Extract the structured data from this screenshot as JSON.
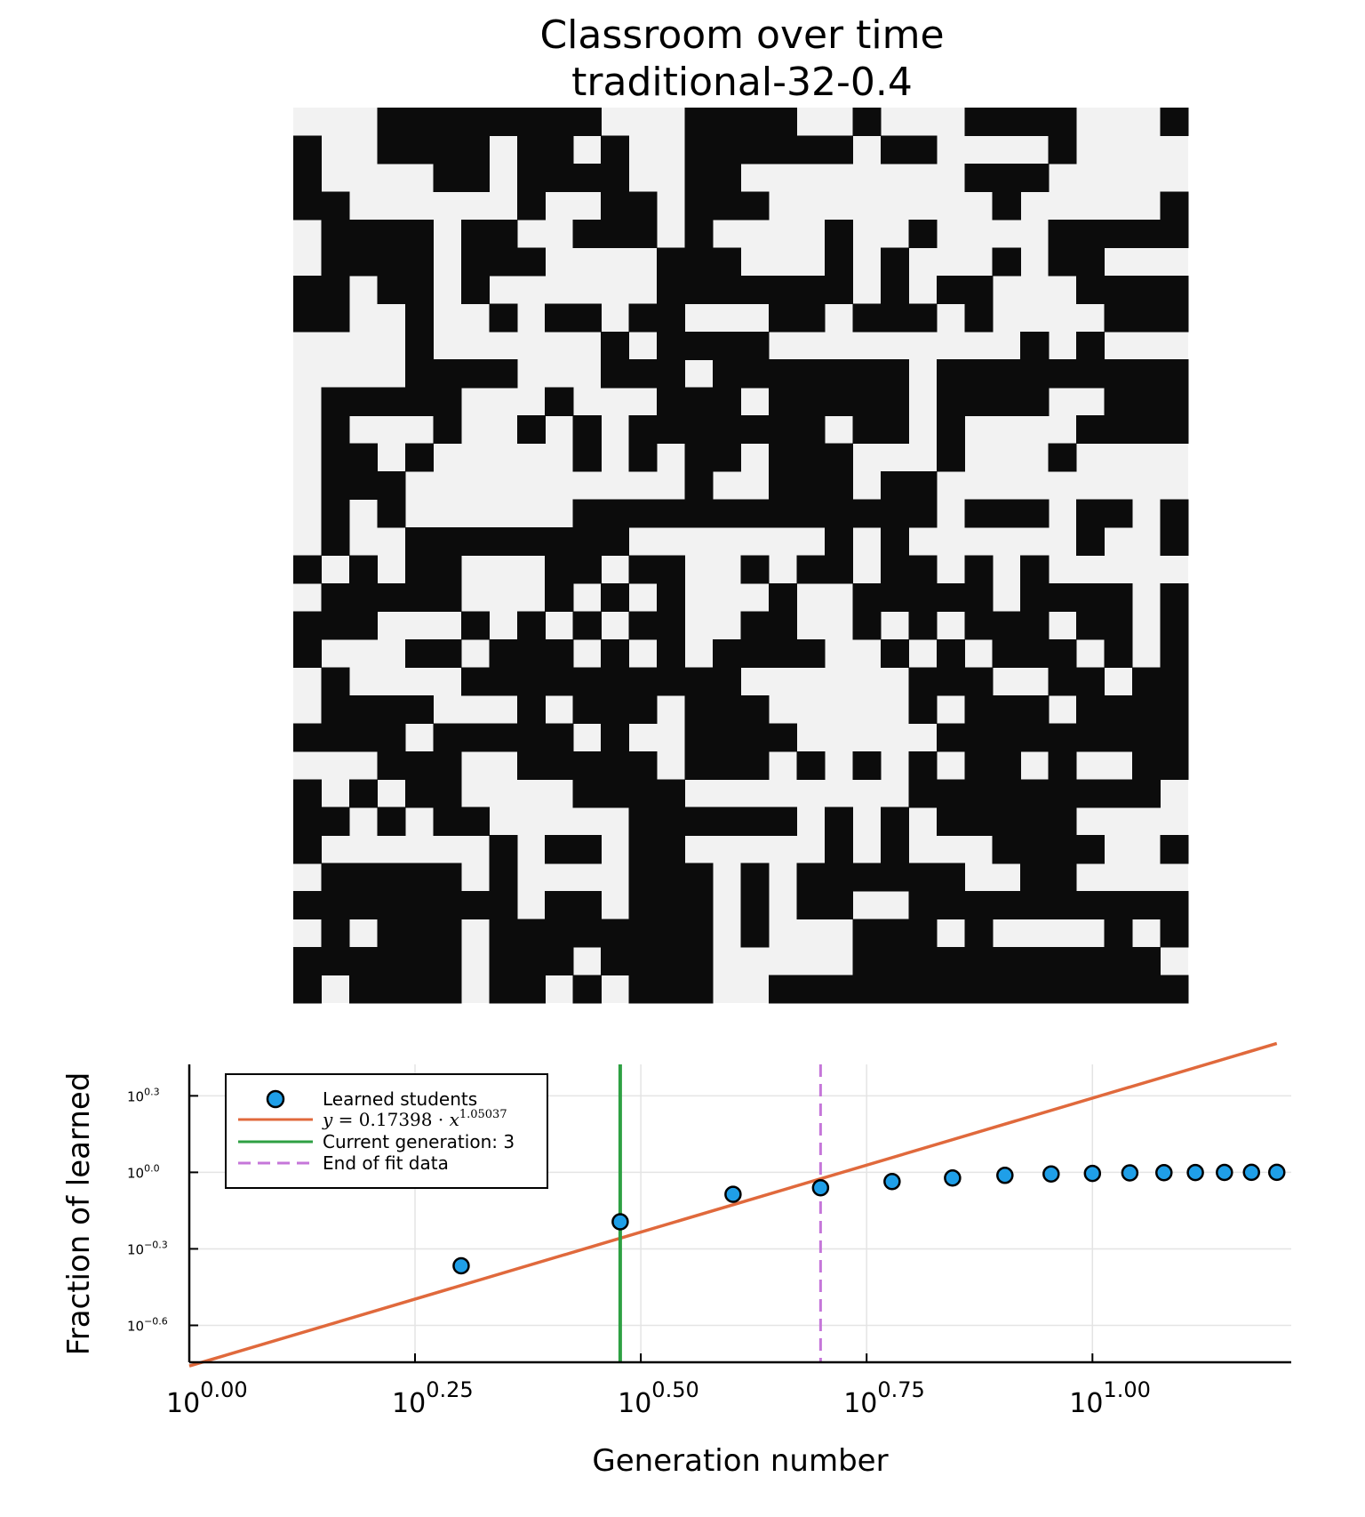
{
  "chart_data": [
    {
      "type": "heatmap",
      "title": "Classroom over time",
      "subtitle": "traditional-32-0.4",
      "colors": {
        "learned": "#0c0c0c",
        "not_learned": "#f2f2f2"
      },
      "grid_size": 32,
      "rows": [
        "00011111111000111100100011110001",
        "10011110110100111111011000010000",
        "10000110111100110000000011100000",
        "11000000100110111000000001000001",
        "01111011001110100001001000011111",
        "01111011100001110001010001011000",
        "11011010000001111111010110001111",
        "11001001011011000110111010000111",
        "00001000000101111000000000101000",
        "00001111000111011111110111111111",
        "01111100010001110111110111100111",
        "01000100101011111110110100001111",
        "01101000001010110111000100010000",
        "01110000000000100111011000000000",
        "01010000001111111111111011101101",
        "01001111111100000001010000001001",
        "10101100011011001011011010100000",
        "01111100010101000100111110111101",
        "11100010101011001100101011101101",
        "10001101110101011110010101110101",
        "01000011111111110000001110011011",
        "01111000101110111000001011101111",
        "11110111110100111100000111111111",
        "00011100111110111010101011010011",
        "10101100001111000000001111111110",
        "11010110000011111101010111110000",
        "10000001011011000001010001111001",
        "01111101000011101011111100110000",
        "11111111011011101011001111111111",
        "01011101111111101000111010000101",
        "11111101110111100000111111111110",
        "10111101101011100111111111111111"
      ]
    },
    {
      "type": "scatter",
      "xlabel": "Generation number",
      "ylabel": "Fraction of learned",
      "x_scale": "log10",
      "y_scale": "log10",
      "xlim": [
        1,
        16.6
      ],
      "ylim": [
        0.18,
        2.65
      ],
      "grid": true,
      "legend_position": "top-left",
      "x_ticks": [
        {
          "value": 1.0,
          "base": "10",
          "exp": "0.00"
        },
        {
          "value": 1.778,
          "base": "10",
          "exp": "0.25"
        },
        {
          "value": 3.162,
          "base": "10",
          "exp": "0.50"
        },
        {
          "value": 5.623,
          "base": "10",
          "exp": "0.75"
        },
        {
          "value": 10.0,
          "base": "10",
          "exp": "1.00"
        }
      ],
      "y_ticks": [
        {
          "value": 0.2512,
          "base": "10",
          "exp": "−0.6"
        },
        {
          "value": 0.5012,
          "base": "10",
          "exp": "−0.3"
        },
        {
          "value": 1.0,
          "base": "10",
          "exp": "0.0"
        },
        {
          "value": 1.995,
          "base": "10",
          "exp": "0.3"
        }
      ],
      "series": [
        {
          "name": "Learned students",
          "kind": "scatter",
          "color": "#1f9fe8",
          "x": [
            2,
            3,
            4,
            5,
            6,
            7,
            8,
            9,
            10,
            11,
            12,
            13,
            14,
            15,
            16
          ],
          "y": [
            0.43,
            0.64,
            0.82,
            0.87,
            0.92,
            0.95,
            0.973,
            0.985,
            0.99,
            0.995,
            0.997,
            0.998,
            0.999,
            1.0,
            1.0
          ]
        },
        {
          "name": "y = 0.17398 · x^1.05037",
          "kind": "line",
          "color": "#e0693c",
          "fit": {
            "a": 0.17398,
            "b": 1.05037
          },
          "x_range": [
            1,
            16
          ]
        },
        {
          "name": "Current generation: 3",
          "kind": "vline",
          "color": "#2ea043",
          "x": 3
        },
        {
          "name": "End of fit data",
          "kind": "vline-dashed",
          "color": "#c576d9",
          "x": 5
        }
      ],
      "legend": {
        "entries": [
          {
            "label": "Learned students"
          },
          {
            "label_math": [
              "y",
              " = 0.17398 · ",
              "x",
              "1.05037"
            ]
          },
          {
            "label": "Current generation: 3"
          },
          {
            "label": "End of fit data"
          }
        ]
      }
    }
  ]
}
